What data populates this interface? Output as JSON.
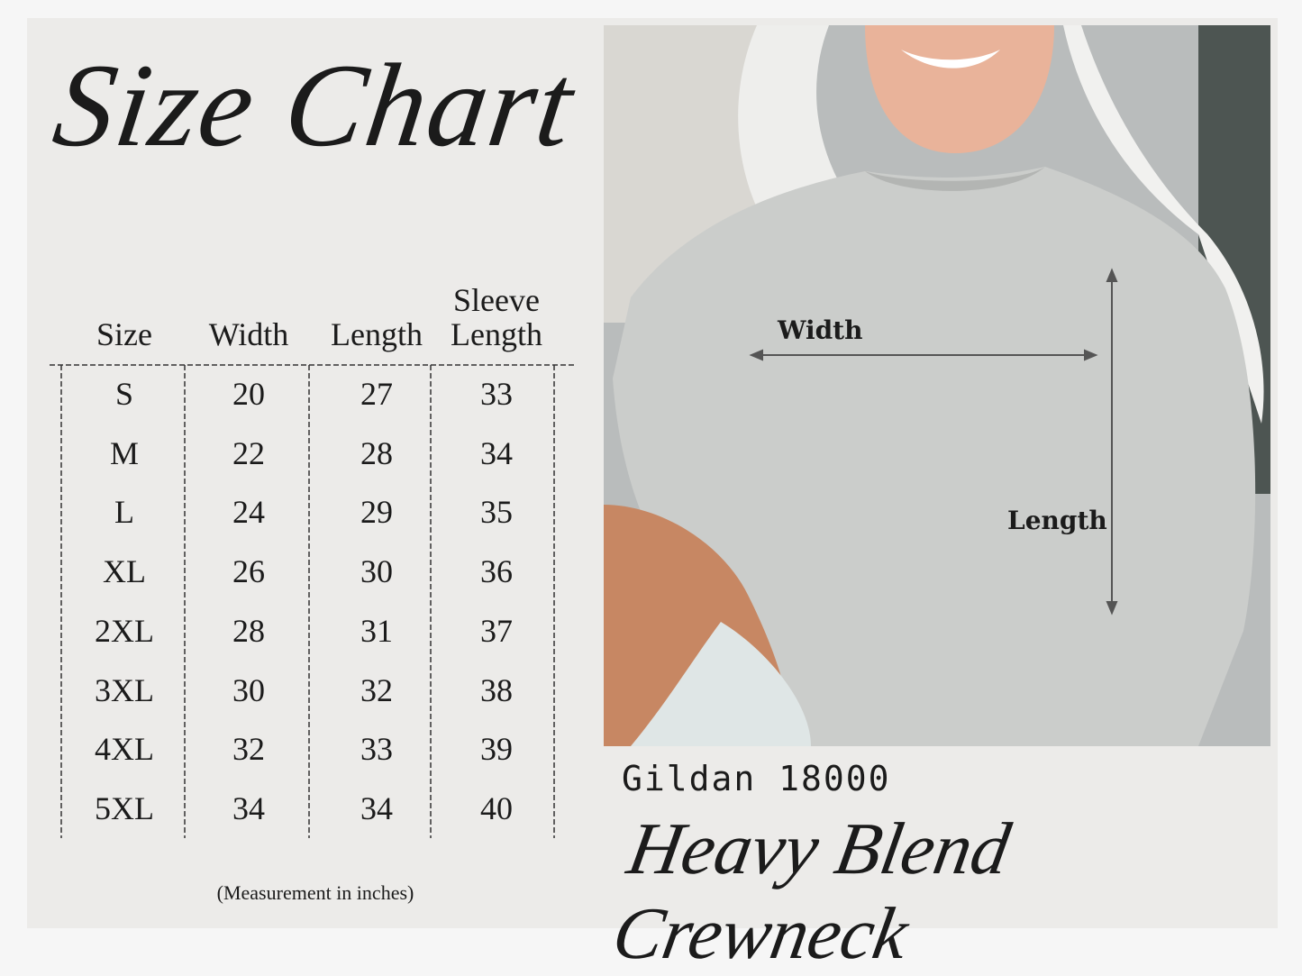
{
  "title": "Size Chart",
  "table": {
    "headers": [
      "Size",
      "Width",
      "Length",
      "Sleeve Length"
    ],
    "rows": [
      [
        "S",
        "20",
        "27",
        "33"
      ],
      [
        "M",
        "22",
        "28",
        "34"
      ],
      [
        "L",
        "24",
        "29",
        "35"
      ],
      [
        "XL",
        "26",
        "30",
        "36"
      ],
      [
        "2XL",
        "28",
        "31",
        "37"
      ],
      [
        "3XL",
        "30",
        "32",
        "38"
      ],
      [
        "4XL",
        "32",
        "33",
        "39"
      ],
      [
        "5XL",
        "34",
        "34",
        "40"
      ]
    ],
    "note": "(Measurement in inches)"
  },
  "photo": {
    "width_label": "Width",
    "length_label": "Length"
  },
  "product": {
    "model": "Gildan 18000",
    "name": "Heavy Blend Crewneck"
  }
}
